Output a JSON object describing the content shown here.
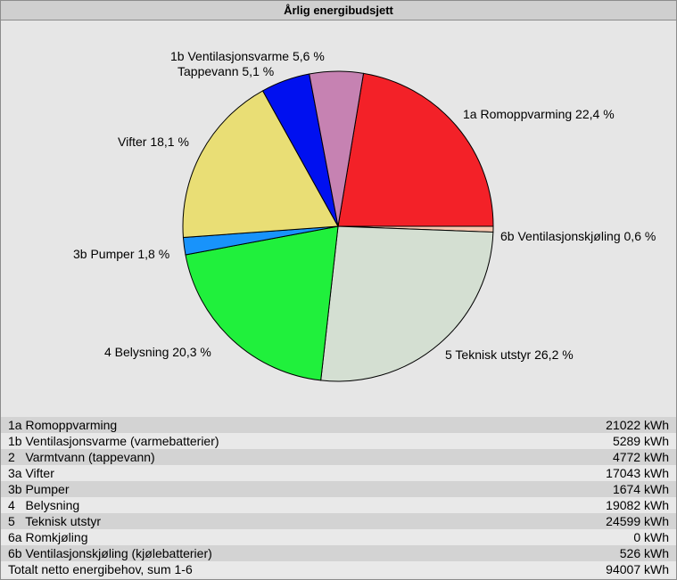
{
  "title": "Årlig energibudsjett",
  "chart_data": {
    "type": "pie",
    "slices": [
      {
        "label": "1a Romoppvarming 22,4 %",
        "value": 22.4,
        "color": "#f32128"
      },
      {
        "label": "6b Ventilasjonskjøling 0,6 %",
        "value": 0.6,
        "color": "#f7c7b0"
      },
      {
        "label": "5  Teknisk utstyr 26,2 %",
        "value": 26.2,
        "color": "#d4dfd2"
      },
      {
        "label": "4  Belysning 20,3 %",
        "value": 20.3,
        "color": "#20f03c"
      },
      {
        "label": "3b Pumper 1,8 %",
        "value": 1.8,
        "color": "#1893fb"
      },
      {
        "label": "Vifter 18,1 %",
        "value": 18.1,
        "color": "#e9de75"
      },
      {
        "label": "Tappevann 5,1 %",
        "value": 5.1,
        "color": "#0010f0"
      },
      {
        "label": "1b Ventilasjonsvarme 5,6 %",
        "value": 5.6,
        "color": "#c682b2"
      }
    ]
  },
  "table": {
    "rows": [
      {
        "label": "1a Romoppvarming",
        "value": "21022 kWh"
      },
      {
        "label": "1b Ventilasjonsvarme (varmebatterier)",
        "value": "5289 kWh"
      },
      {
        "label": "2   Varmtvann (tappevann)",
        "value": "4772 kWh"
      },
      {
        "label": "3a Vifter",
        "value": "17043 kWh"
      },
      {
        "label": "3b Pumper",
        "value": "1674 kWh"
      },
      {
        "label": "4   Belysning",
        "value": "19082 kWh"
      },
      {
        "label": "5   Teknisk utstyr",
        "value": "24599 kWh"
      },
      {
        "label": "6a Romkjøling",
        "value": "0 kWh"
      },
      {
        "label": "6b Ventilasjonskjøling (kjølebatterier)",
        "value": "526 kWh"
      },
      {
        "label": "Totalt netto energibehov, sum 1-6",
        "value": "94007 kWh"
      }
    ]
  }
}
